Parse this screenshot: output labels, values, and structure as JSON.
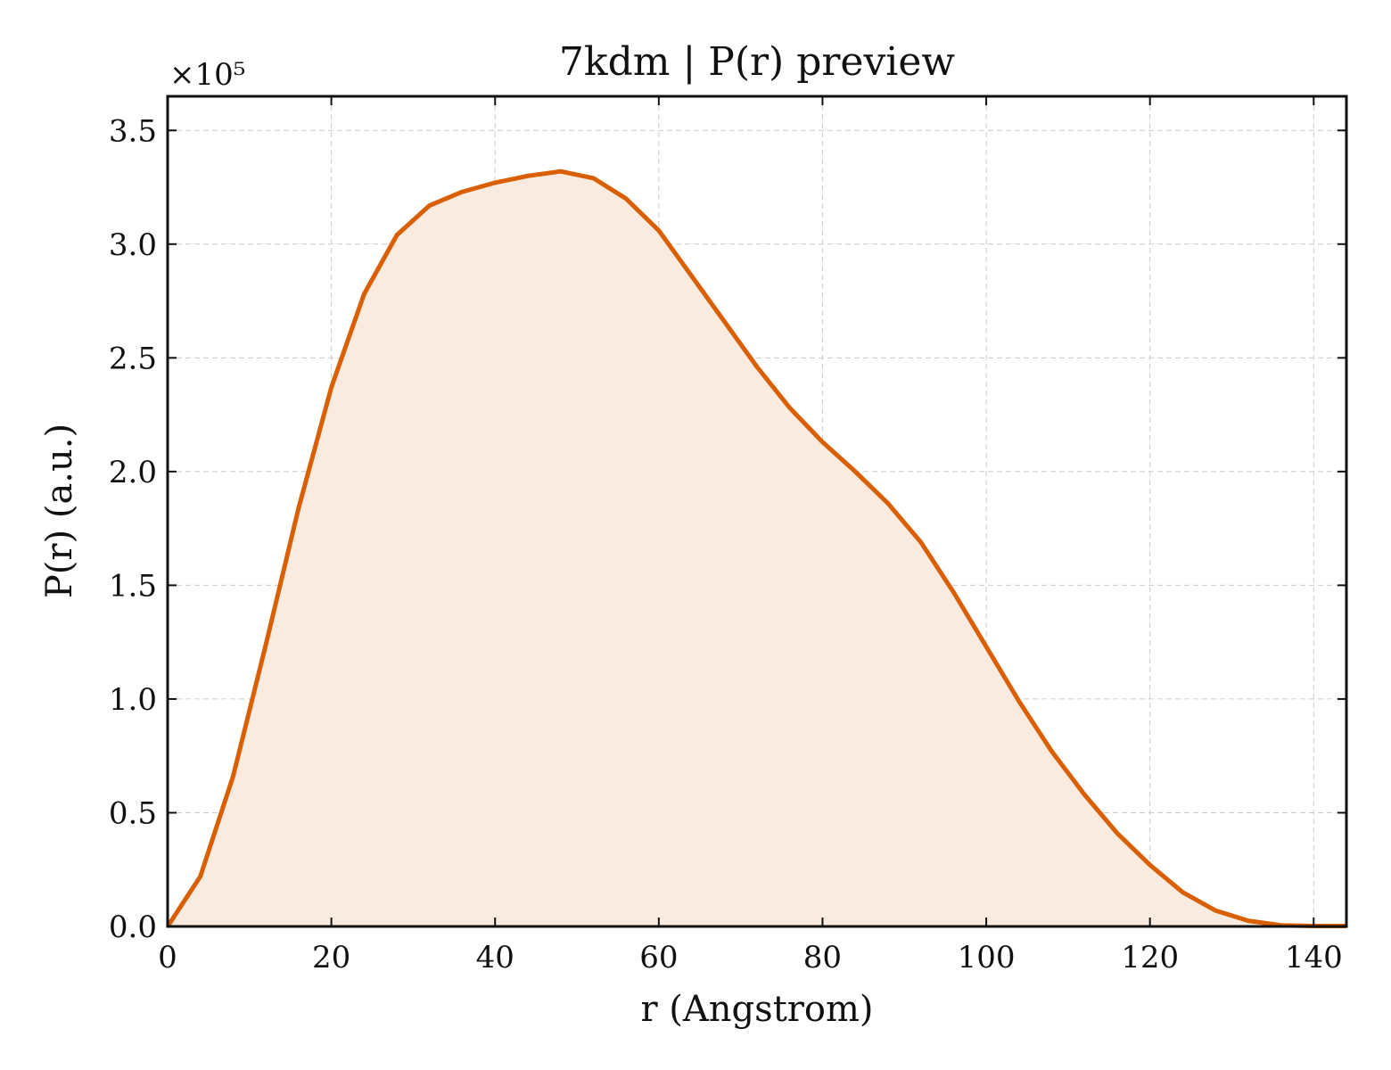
{
  "chart_data": {
    "type": "area",
    "title": "7kdm | P(r) preview",
    "xlabel": "r (Angstrom)",
    "ylabel": "P(r) (a.u.)",
    "y_multiplier_label": "×10⁵",
    "xlim": [
      0,
      144
    ],
    "ylim": [
      0,
      3.65
    ],
    "x_ticks": [
      0,
      20,
      40,
      60,
      80,
      100,
      120,
      140
    ],
    "x_tick_labels": [
      "0",
      "20",
      "40",
      "60",
      "80",
      "100",
      "120",
      "140"
    ],
    "y_ticks": [
      0,
      0.5,
      1.0,
      1.5,
      2.0,
      2.5,
      3.0,
      3.5
    ],
    "y_tick_labels": [
      "0.0",
      "0.5",
      "1.0",
      "1.5",
      "2.0",
      "2.5",
      "3.0",
      "3.5"
    ],
    "grid": true,
    "line_color": "#d95f02",
    "fill_color": "#f9ebe0",
    "series": [
      {
        "x": [
          0,
          4,
          8,
          12,
          16,
          20,
          24,
          28,
          32,
          36,
          40,
          44,
          48,
          52,
          56,
          60,
          64,
          68,
          72,
          76,
          80,
          84,
          88,
          92,
          96,
          100,
          104,
          108,
          112,
          116,
          120,
          124,
          128,
          132,
          136,
          140,
          144
        ],
        "values": [
          0.0,
          0.22,
          0.66,
          1.24,
          1.84,
          2.37,
          2.78,
          3.04,
          3.17,
          3.23,
          3.27,
          3.3,
          3.32,
          3.29,
          3.2,
          3.06,
          2.86,
          2.66,
          2.46,
          2.28,
          2.13,
          2.0,
          1.86,
          1.69,
          1.47,
          1.23,
          0.99,
          0.77,
          0.58,
          0.41,
          0.27,
          0.15,
          0.07,
          0.025,
          0.005,
          0.002,
          0.002
        ]
      }
    ]
  }
}
